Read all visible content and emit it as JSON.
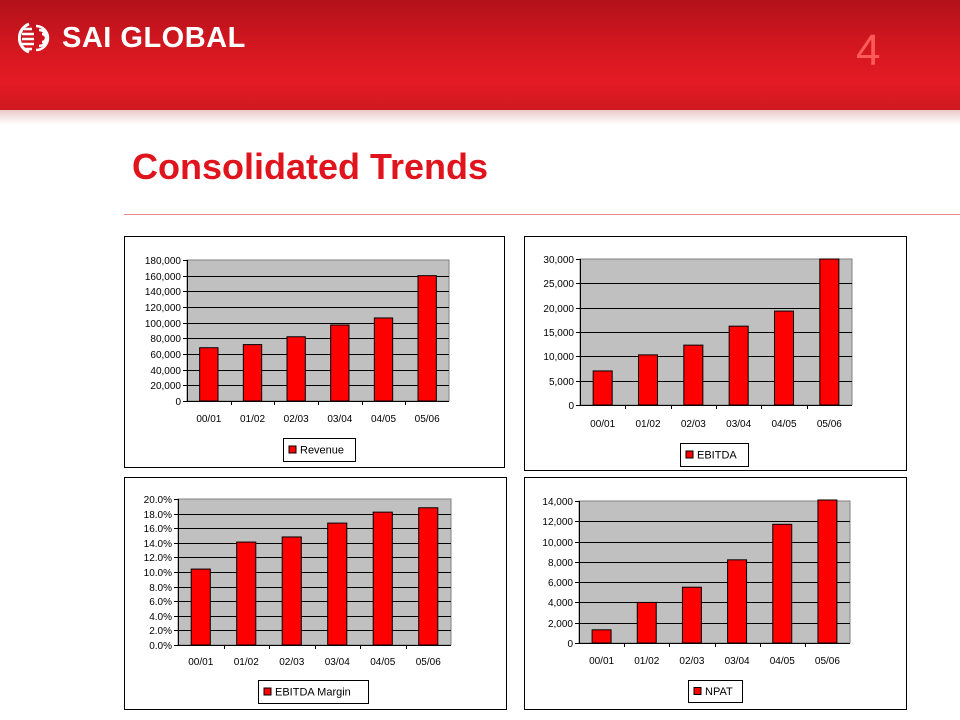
{
  "header": {
    "logo_text": "SAI GLOBAL",
    "slide_number": "4",
    "colors": {
      "banner": "#d2161f",
      "accent": "#e0141d",
      "bar": "#ff0000",
      "plot_bg": "#c0c0c0"
    }
  },
  "page_title": "Consolidated Trends",
  "chart_data": [
    {
      "type": "bar",
      "categories": [
        "00/01",
        "01/02",
        "02/03",
        "03/04",
        "04/05",
        "05/06"
      ],
      "series": [
        {
          "name": "Revenue",
          "values": [
            68000,
            72000,
            82000,
            97000,
            106000,
            160000
          ]
        }
      ],
      "ylim": [
        0,
        180000
      ],
      "yticks": [
        0,
        20000,
        40000,
        60000,
        80000,
        100000,
        120000,
        140000,
        160000,
        180000
      ],
      "ytick_labels": [
        "0",
        "20,000",
        "40,000",
        "60,000",
        "80,000",
        "100,000",
        "120,000",
        "140,000",
        "160,000",
        "180,000"
      ],
      "grid": true,
      "legend": "bottom"
    },
    {
      "type": "bar",
      "categories": [
        "00/01",
        "01/02",
        "02/03",
        "03/04",
        "04/05",
        "05/06"
      ],
      "series": [
        {
          "name": "EBITDA",
          "values": [
            7000,
            10300,
            12300,
            16200,
            19300,
            30000
          ]
        }
      ],
      "ylim": [
        0,
        30000
      ],
      "yticks": [
        0,
        5000,
        10000,
        15000,
        20000,
        25000,
        30000
      ],
      "ytick_labels": [
        "0",
        "5,000",
        "10,000",
        "15,000",
        "20,000",
        "25,000",
        "30,000"
      ],
      "grid": true,
      "legend": "bottom"
    },
    {
      "type": "bar",
      "categories": [
        "00/01",
        "01/02",
        "02/03",
        "03/04",
        "04/05",
        "05/06"
      ],
      "series": [
        {
          "name": "EBITDA Margin",
          "values": [
            10.4,
            14.1,
            14.8,
            16.7,
            18.2,
            18.8
          ]
        }
      ],
      "ylim": [
        0,
        20
      ],
      "yticks": [
        0,
        2,
        4,
        6,
        8,
        10,
        12,
        14,
        16,
        18,
        20
      ],
      "ytick_labels": [
        "0.0%",
        "2.0%",
        "4.0%",
        "6.0%",
        "8.0%",
        "10.0%",
        "12.0%",
        "14.0%",
        "16.0%",
        "18.0%",
        "20.0%"
      ],
      "grid": true,
      "legend": "bottom"
    },
    {
      "type": "bar",
      "categories": [
        "00/01",
        "01/02",
        "02/03",
        "03/04",
        "04/05",
        "05/06"
      ],
      "series": [
        {
          "name": "NPAT",
          "values": [
            1300,
            4000,
            5500,
            8200,
            11700,
            14100
          ]
        }
      ],
      "ylim": [
        0,
        14000
      ],
      "yticks": [
        0,
        2000,
        4000,
        6000,
        8000,
        10000,
        12000,
        14000
      ],
      "ytick_labels": [
        "0",
        "2,000",
        "4,000",
        "6,000",
        "8,000",
        "10,000",
        "12,000",
        "14,000"
      ],
      "grid": true,
      "legend": "bottom"
    }
  ]
}
